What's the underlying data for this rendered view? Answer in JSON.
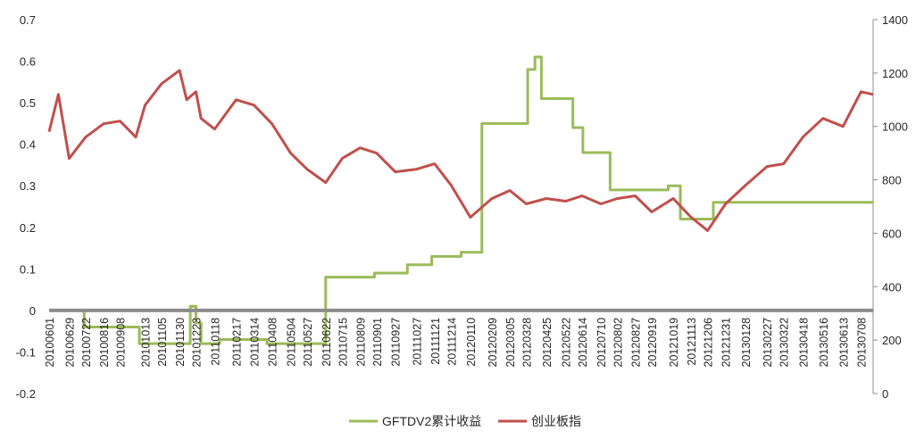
{
  "chart_data": {
    "type": "line",
    "title": "",
    "xlabel": "",
    "left_axis": {
      "ylim": [
        -0.2,
        0.7
      ],
      "ticks": [
        "-0.2",
        "-0.1",
        "0",
        "0.1",
        "0.2",
        "0.3",
        "0.4",
        "0.5",
        "0.6",
        "0.7"
      ]
    },
    "right_axis": {
      "ylim": [
        0,
        1400
      ],
      "ticks": [
        "0",
        "200",
        "400",
        "600",
        "800",
        "1000",
        "1200",
        "1400"
      ]
    },
    "x_tick_labels": [
      "20100601",
      "20100629",
      "20100722",
      "20100816",
      "20100908",
      "20101013",
      "20101105",
      "20101130",
      "20101223",
      "20110118",
      "20110217",
      "20110314",
      "20110408",
      "20110504",
      "20110527",
      "20110622",
      "20110715",
      "20110809",
      "20110901",
      "20110927",
      "20111027",
      "20111121",
      "20111214",
      "20120110",
      "20120209",
      "20120305",
      "20120328",
      "20120425",
      "20120522",
      "20120614",
      "20120710",
      "20120802",
      "20120827",
      "20120919",
      "20121019",
      "20121113",
      "20121206",
      "20121231",
      "20130128",
      "20130227",
      "20130322",
      "20130418",
      "20130516",
      "20130613",
      "20130708"
    ],
    "grid": false,
    "legend_position": "bottom",
    "series": [
      {
        "name": "GFTDV2累计收益",
        "axis": "left",
        "color": "#9bbb59",
        "step": true,
        "points": [
          [
            "20100601",
            0.0
          ],
          [
            "20100720",
            -0.04
          ],
          [
            "20100922",
            -0.04
          ],
          [
            "20101005",
            -0.08
          ],
          [
            "20101215",
            0.01
          ],
          [
            "20101223",
            -0.03
          ],
          [
            "20101230",
            -0.08
          ],
          [
            "20110125",
            -0.07
          ],
          [
            "20110401",
            -0.08
          ],
          [
            "20110622",
            0.08
          ],
          [
            "20110829",
            0.09
          ],
          [
            "20111014",
            0.11
          ],
          [
            "20111117",
            0.13
          ],
          [
            "20111228",
            0.14
          ],
          [
            "20120126",
            0.45
          ],
          [
            "20120301",
            0.45
          ],
          [
            "20120330",
            0.58
          ],
          [
            "20120409",
            0.61
          ],
          [
            "20120418",
            0.51
          ],
          [
            "20120601",
            0.44
          ],
          [
            "20120615",
            0.38
          ],
          [
            "20120723",
            0.29
          ],
          [
            "20120925",
            0.29
          ],
          [
            "20121012",
            0.3
          ],
          [
            "20121029",
            0.22
          ],
          [
            "20121214",
            0.26
          ],
          [
            "20130725",
            0.26
          ]
        ]
      },
      {
        "name": "创业板指",
        "axis": "right",
        "color": "#c0504d",
        "step": false,
        "points": [
          [
            "20100601",
            980
          ],
          [
            "20100614",
            1120
          ],
          [
            "20100629",
            880
          ],
          [
            "20100722",
            960
          ],
          [
            "20100816",
            1010
          ],
          [
            "20100908",
            1020
          ],
          [
            "20100930",
            960
          ],
          [
            "20101013",
            1080
          ],
          [
            "20101105",
            1160
          ],
          [
            "20101130",
            1210
          ],
          [
            "20101210",
            1100
          ],
          [
            "20101223",
            1130
          ],
          [
            "20101230",
            1030
          ],
          [
            "20110118",
            990
          ],
          [
            "20110217",
            1100
          ],
          [
            "20110314",
            1080
          ],
          [
            "20110408",
            1010
          ],
          [
            "20110504",
            900
          ],
          [
            "20110527",
            840
          ],
          [
            "20110622",
            790
          ],
          [
            "20110715",
            880
          ],
          [
            "20110809",
            920
          ],
          [
            "20110901",
            900
          ],
          [
            "20110927",
            830
          ],
          [
            "20111027",
            840
          ],
          [
            "20111121",
            860
          ],
          [
            "20111214",
            780
          ],
          [
            "20120110",
            660
          ],
          [
            "20120209",
            730
          ],
          [
            "20120305",
            760
          ],
          [
            "20120328",
            710
          ],
          [
            "20120425",
            730
          ],
          [
            "20120522",
            720
          ],
          [
            "20120614",
            740
          ],
          [
            "20120710",
            710
          ],
          [
            "20120802",
            730
          ],
          [
            "20120827",
            740
          ],
          [
            "20120919",
            680
          ],
          [
            "20121019",
            730
          ],
          [
            "20121113",
            660
          ],
          [
            "20121206",
            610
          ],
          [
            "20121231",
            710
          ],
          [
            "20130128",
            780
          ],
          [
            "20130227",
            850
          ],
          [
            "20130322",
            860
          ],
          [
            "20130418",
            960
          ],
          [
            "20130516",
            1030
          ],
          [
            "20130613",
            1000
          ],
          [
            "20130708",
            1130
          ],
          [
            "20130725",
            1120
          ]
        ]
      }
    ]
  }
}
